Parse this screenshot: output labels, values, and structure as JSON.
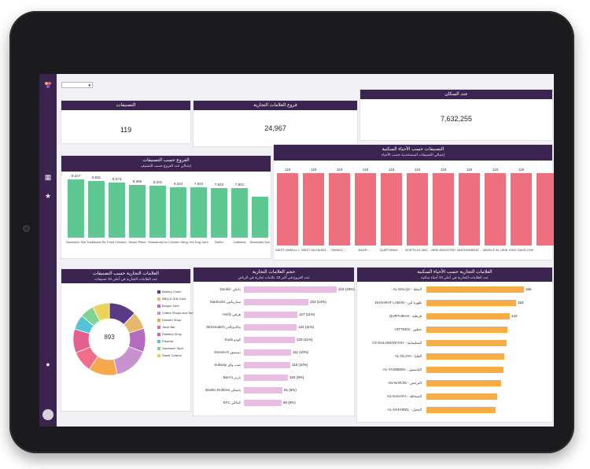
{
  "filter": {
    "selected": "▾"
  },
  "kpis": [
    {
      "title": "التصنيفات",
      "value": "119"
    },
    {
      "title": "فروع العلامات التجارية",
      "value": "24,967"
    },
    {
      "title": "عدد السكان",
      "value": "7,632,255"
    }
  ],
  "branches_chart": {
    "title": "الفروع حسب التصنيفات",
    "subtitle": "إجمالي عدد الفروع حسب التصنيف",
    "bars": [
      {
        "label": "Sandwich Stall",
        "value": "9,227",
        "v": 9227
      },
      {
        "label": "Traditional Resta...",
        "value": "8,931",
        "v": 8931
      },
      {
        "label": "Fried Chicken Jo...",
        "value": "8,673",
        "v": 8673
      },
      {
        "label": "Snack Place",
        "value": "8,395",
        "v": 8395
      },
      {
        "label": "Shawarma House",
        "value": "8,201",
        "v": 8201
      },
      {
        "label": "Chicken Wings J...",
        "value": "8,032",
        "v": 8032
      },
      {
        "label": "Hot Dog Joint",
        "value": "7,924",
        "v": 7924
      },
      {
        "label": "Buffet",
        "value": "7,842",
        "v": 7842
      },
      {
        "label": "Cafeteria",
        "value": "7,841",
        "v": 7841
      },
      {
        "label": "Breakfast Spot",
        "value": "",
        "v": 6500
      }
    ],
    "color": "#5ec792"
  },
  "districts_chart": {
    "title": "التصنيفات حسب الأحياء السكنية",
    "subtitle": "إجمالي التصنيفات المستخدمة حسب الأحياء",
    "bars": [
      {
        "label": "WEST UMM AL HA...",
        "value": "119",
        "v": 119
      },
      {
        "label": "WEST AN NASEEM",
        "value": "119",
        "v": 119
      },
      {
        "label": "TAWAIQ - ...",
        "value": "119",
        "v": 119
      },
      {
        "label": "BADR - ...",
        "value": "119",
        "v": 119
      },
      {
        "label": "QURTUBAH - ...",
        "value": "119",
        "v": 119
      },
      {
        "label": "NORTH AL NAT...",
        "value": "119",
        "v": 119
      },
      {
        "label": "NEW INDUSTRIA...",
        "value": "119",
        "v": 119
      },
      {
        "label": "MUDHAHARAT...",
        "value": "119",
        "v": 119
      },
      {
        "label": "MIDDLE AL URAIJA",
        "value": "119",
        "v": 119
      },
      {
        "label": "KING SAUD UNIV...",
        "value": "119",
        "v": 119
      },
      {
        "label": "",
        "value": "",
        "v": 119
      }
    ],
    "color": "#ee6f7d"
  },
  "donut": {
    "title": "العلامات التجارية حسب التصنيفات",
    "subtitle": "عدد العلامات التجارية في أعلى 10 تصنيفات",
    "center": "893",
    "slices": [
      {
        "name": "Bakery Chain",
        "value": 110,
        "color": "#5a3a86"
      },
      {
        "name": "BBQ & Grill Joint",
        "value": 70,
        "color": "#e6b86a"
      },
      {
        "name": "Burger Joint",
        "value": 95,
        "color": "#b56bbf"
      },
      {
        "name": "Coffee Shops and Tea...",
        "value": 140,
        "color": "#c792cf"
      },
      {
        "name": "Dessert Shop",
        "value": 115,
        "color": "#f3a84d"
      },
      {
        "name": "Juice Bar",
        "value": 85,
        "color": "#f06e8a"
      },
      {
        "name": "Pastries Shop",
        "value": 95,
        "color": "#e45e90"
      },
      {
        "name": "Pizzeria",
        "value": 60,
        "color": "#56c4d8"
      },
      {
        "name": "Sandwich Spot",
        "value": 55,
        "color": "#7fd494"
      },
      {
        "name": "Saudi Cuisine",
        "value": 68,
        "color": "#e9d35a"
      }
    ]
  },
  "brand_size": {
    "title": "حجم العلامات التجارية",
    "subtitle": "عدد الفروع في أكبر 10 علامات تجارية في الرياض",
    "color": "#e9bde2",
    "max": 219,
    "rows": [
      {
        "label": "Dunkin' دانكن",
        "value": 219,
        "text": "219 (19%)"
      },
      {
        "label": "Starbucks ستاربكس",
        "value": 153,
        "text": "153 (14%)"
      },
      {
        "label": "Herfy هرفي",
        "value": 127,
        "text": "127 (11%)"
      },
      {
        "label": "McDonald's ماكدونالدز",
        "value": 124,
        "text": "124 (11%)"
      },
      {
        "label": "Kudu كودو",
        "value": 120,
        "text": "120 (11%)"
      },
      {
        "label": "Domino's دومينوز",
        "value": 111,
        "text": "111 (10%)"
      },
      {
        "label": "Subway صب واي",
        "value": 110,
        "text": "110 (10%)"
      },
      {
        "label": "Barn's بارنز",
        "value": 104,
        "text": "104 (9%)"
      },
      {
        "label": "Baskin Robbins باسكن",
        "value": 91,
        "text": "91 (8%)"
      },
      {
        "label": "KFC كنتاكي",
        "value": 90,
        "text": "90 (8%)"
      }
    ]
  },
  "brands_district": {
    "title": "العلامات التجارية حسب الأحياء السكنية",
    "subtitle": "عدد العلامات التجارية في أعلى 10 أحياء سكنية",
    "color": "#f7ae48",
    "max": 166,
    "rows": [
      {
        "label": "AL MALQA - الملقا",
        "value": 166,
        "text": "166"
      },
      {
        "label": "DHAHRAT LABAN - ظهرة لبن",
        "value": 153,
        "text": "153"
      },
      {
        "label": "QURTUBAH - قرطبة",
        "value": 142,
        "text": "142"
      },
      {
        "label": "HITTEEN - حطين",
        "value": 138,
        "text": ""
      },
      {
        "label": "AS-SULAIMANIYAH - السليمانية",
        "value": 137,
        "text": ""
      },
      {
        "label": "AL-OLAYA - العليا",
        "value": 133,
        "text": ""
      },
      {
        "label": "AL-YASMEEN - الياسمين",
        "value": 131,
        "text": ""
      },
      {
        "label": "AN-NARJIS - النرجس",
        "value": 127,
        "text": ""
      },
      {
        "label": "AS-SAHAFA - الصحافة",
        "value": 120,
        "text": ""
      },
      {
        "label": "AL-NAKHEEL - النخيل",
        "value": 118,
        "text": ""
      }
    ]
  }
}
